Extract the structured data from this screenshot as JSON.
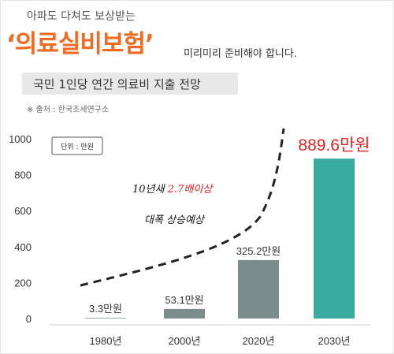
{
  "header": {
    "lead": "아파도 다쳐도 보상받는",
    "headline": "‘의료실비보험’",
    "headline_suffix": "미리미리 준비해야 합니다.",
    "subtitle": "국민 1인당 연간 의료비 지출 전망",
    "source": "※ 출처 : 한국조세연구소"
  },
  "colors": {
    "accent": "#ef6a23",
    "bar": "#7b8d8a",
    "bar_highlight": "#3aab9f",
    "highlight_label": "#e02424"
  },
  "chart_data": {
    "type": "bar",
    "title": "",
    "xlabel": "",
    "ylabel": "",
    "unit_label": "단위 : 만원",
    "categories": [
      "1980년",
      "2000년",
      "2020년",
      "2030년"
    ],
    "values": [
      3.3,
      53.1,
      325.2,
      889.6
    ],
    "value_labels": [
      "3.3만원",
      "53.1만원",
      "325.2만원",
      "889.6만원"
    ],
    "ylim": [
      0,
      1000
    ],
    "yticks": [
      0,
      200,
      400,
      600,
      800,
      1000
    ],
    "grid": false,
    "legend": "none",
    "highlight_index": 3,
    "annotations": {
      "trend_line": "dashed curve",
      "text_1_prefix": "10년새 ",
      "text_1_highlight": "2.7배이상",
      "text_2": "대폭 상승예상"
    }
  }
}
